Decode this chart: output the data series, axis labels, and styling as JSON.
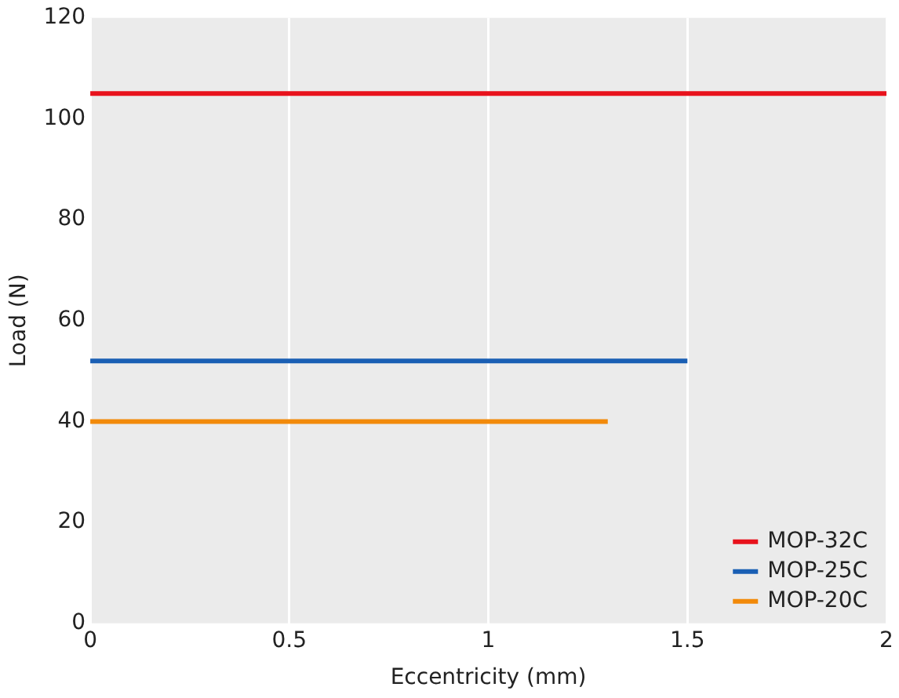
{
  "chart_data": {
    "type": "line",
    "xlabel": "Eccentricity (mm)",
    "ylabel": "Load (N)",
    "xlim": [
      0,
      2
    ],
    "xticks": [
      0,
      0.5,
      1,
      1.5,
      2
    ],
    "ylim": [
      0,
      120
    ],
    "yticks": [
      0,
      20,
      40,
      60,
      80,
      100,
      120
    ],
    "grid": "x",
    "legend": "bottom right",
    "marker": "none",
    "line_style": "solid",
    "series": [
      {
        "name": "MOP-32C",
        "color": "#e8121c",
        "x": [
          0,
          2
        ],
        "values": [
          105,
          105
        ]
      },
      {
        "name": "MOP-25C",
        "color": "#1a5fb4",
        "x": [
          0,
          1.5
        ],
        "values": [
          52,
          52
        ]
      },
      {
        "name": "MOP-20C",
        "color": "#f28a0a",
        "x": [
          0,
          1.3
        ],
        "values": [
          40,
          40
        ]
      }
    ]
  }
}
